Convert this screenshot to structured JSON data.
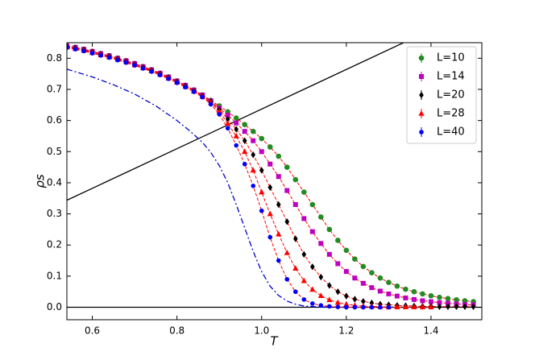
{
  "chart_data": {
    "type": "scatter",
    "xlabel": "T",
    "ylabel": "ρs",
    "xlim": [
      0.54,
      1.52
    ],
    "ylim": [
      -0.04,
      0.85
    ],
    "xticks": [
      0.6,
      0.8,
      {
        "value": 1,
        "label": "1.0"
      },
      1.2,
      1.4
    ],
    "yticks": [
      {
        "value": 0,
        "label": "0.0"
      },
      0.1,
      0.2,
      0.3,
      0.4,
      0.5,
      0.6,
      0.7,
      0.8
    ],
    "legend": "upper right",
    "fit_color": "#ff0000",
    "x": [
      0.54,
      0.56,
      0.58,
      0.6,
      0.62,
      0.64,
      0.66,
      0.68,
      0.7,
      0.72,
      0.74,
      0.76,
      0.78,
      0.8,
      0.82,
      0.84,
      0.86,
      0.88,
      0.9,
      0.92,
      0.94,
      0.96,
      0.98,
      1.0,
      1.02,
      1.04,
      1.06,
      1.08,
      1.1,
      1.12,
      1.14,
      1.16,
      1.18,
      1.2,
      1.22,
      1.24,
      1.26,
      1.28,
      1.3,
      1.32,
      1.34,
      1.36,
      1.38,
      1.4,
      1.42,
      1.44,
      1.46,
      1.48,
      1.5
    ],
    "series": [
      {
        "name": "L=10",
        "color": "#228b22",
        "marker": "circle",
        "values": [
          0.84,
          0.835,
          0.829,
          0.822,
          0.815,
          0.808,
          0.8,
          0.792,
          0.783,
          0.773,
          0.763,
          0.752,
          0.74,
          0.727,
          0.713,
          0.698,
          0.682,
          0.665,
          0.647,
          0.628,
          0.608,
          0.587,
          0.565,
          0.542,
          0.515,
          0.485,
          0.45,
          0.41,
          0.37,
          0.33,
          0.29,
          0.25,
          0.215,
          0.183,
          0.155,
          0.131,
          0.111,
          0.094,
          0.08,
          0.068,
          0.058,
          0.05,
          0.043,
          0.037,
          0.032,
          0.028,
          0.024,
          0.021,
          0.018
        ]
      },
      {
        "name": "L=14",
        "color": "#bf00bf",
        "marker": "square",
        "values": [
          0.84,
          0.835,
          0.829,
          0.822,
          0.815,
          0.808,
          0.8,
          0.792,
          0.783,
          0.773,
          0.763,
          0.752,
          0.74,
          0.727,
          0.713,
          0.698,
          0.682,
          0.663,
          0.64,
          0.617,
          0.592,
          0.565,
          0.535,
          0.5,
          0.46,
          0.42,
          0.375,
          0.33,
          0.285,
          0.243,
          0.205,
          0.17,
          0.14,
          0.115,
          0.094,
          0.077,
          0.063,
          0.052,
          0.043,
          0.036,
          0.03,
          0.025,
          0.021,
          0.018,
          0.015,
          0.013,
          0.011,
          0.009,
          0.008
        ]
      },
      {
        "name": "L=20",
        "color": "#000000",
        "marker": "diamond",
        "values": [
          0.838,
          0.833,
          0.827,
          0.82,
          0.813,
          0.806,
          0.798,
          0.79,
          0.781,
          0.771,
          0.761,
          0.75,
          0.738,
          0.725,
          0.711,
          0.696,
          0.679,
          0.66,
          0.635,
          0.605,
          0.572,
          0.535,
          0.49,
          0.44,
          0.385,
          0.33,
          0.275,
          0.22,
          0.17,
          0.13,
          0.097,
          0.07,
          0.05,
          0.036,
          0.026,
          0.019,
          0.014,
          0.01,
          0.008,
          0.006,
          0.005,
          0.004,
          0.003,
          0.003,
          0.002,
          0.002,
          0.002,
          0.002,
          0.002
        ]
      },
      {
        "name": "L=28",
        "color": "#ff0000",
        "marker": "triangle",
        "values": [
          0.836,
          0.831,
          0.825,
          0.818,
          0.811,
          0.804,
          0.796,
          0.788,
          0.779,
          0.769,
          0.759,
          0.748,
          0.736,
          0.723,
          0.709,
          0.694,
          0.677,
          0.657,
          0.63,
          0.59,
          0.55,
          0.5,
          0.44,
          0.37,
          0.3,
          0.235,
          0.175,
          0.125,
          0.085,
          0.057,
          0.037,
          0.024,
          0.015,
          0.01,
          0.006,
          0.004,
          0.003,
          0.002,
          0.001,
          0.001,
          0.001,
          0.001,
          0.001,
          0.001,
          null,
          null,
          null,
          null,
          null
        ]
      },
      {
        "name": "L=40",
        "color": "#0000ff",
        "marker": "dot",
        "values": [
          0.834,
          0.829,
          0.823,
          0.816,
          0.809,
          0.802,
          0.794,
          0.786,
          0.777,
          0.767,
          0.757,
          0.746,
          0.734,
          0.721,
          0.707,
          0.692,
          0.675,
          0.652,
          0.62,
          0.575,
          0.52,
          0.46,
          0.39,
          0.31,
          0.225,
          0.15,
          0.09,
          0.05,
          0.025,
          0.012,
          0.006,
          0.003,
          0.001,
          0,
          0,
          0,
          0,
          0,
          0,
          null,
          null,
          null,
          null,
          null,
          null,
          null,
          null,
          null,
          null
        ]
      }
    ],
    "reference_lines": [
      {
        "color": "#000000",
        "style": "solid",
        "x": [
          0.54,
          1.34
        ],
        "values": [
          0.344,
          0.853
        ]
      },
      {
        "color": "#000000",
        "style": "solid",
        "x": [
          0.54,
          1.52
        ],
        "values": [
          0,
          0
        ]
      },
      {
        "color": "#0000cc",
        "style": "dashdot",
        "x": [
          0.54,
          0.6,
          0.65,
          0.7,
          0.75,
          0.8,
          0.83,
          0.86,
          0.88,
          0.9,
          0.92,
          0.94,
          0.96,
          0.98,
          1.0,
          1.02,
          1.04,
          1.06,
          1.08,
          1.1,
          1.14,
          1.2
        ],
        "values": [
          0.765,
          0.74,
          0.715,
          0.685,
          0.647,
          0.6,
          0.567,
          0.53,
          0.497,
          0.455,
          0.4,
          0.33,
          0.255,
          0.18,
          0.115,
          0.068,
          0.038,
          0.02,
          0.01,
          0.004,
          0.001,
          0
        ]
      }
    ]
  }
}
